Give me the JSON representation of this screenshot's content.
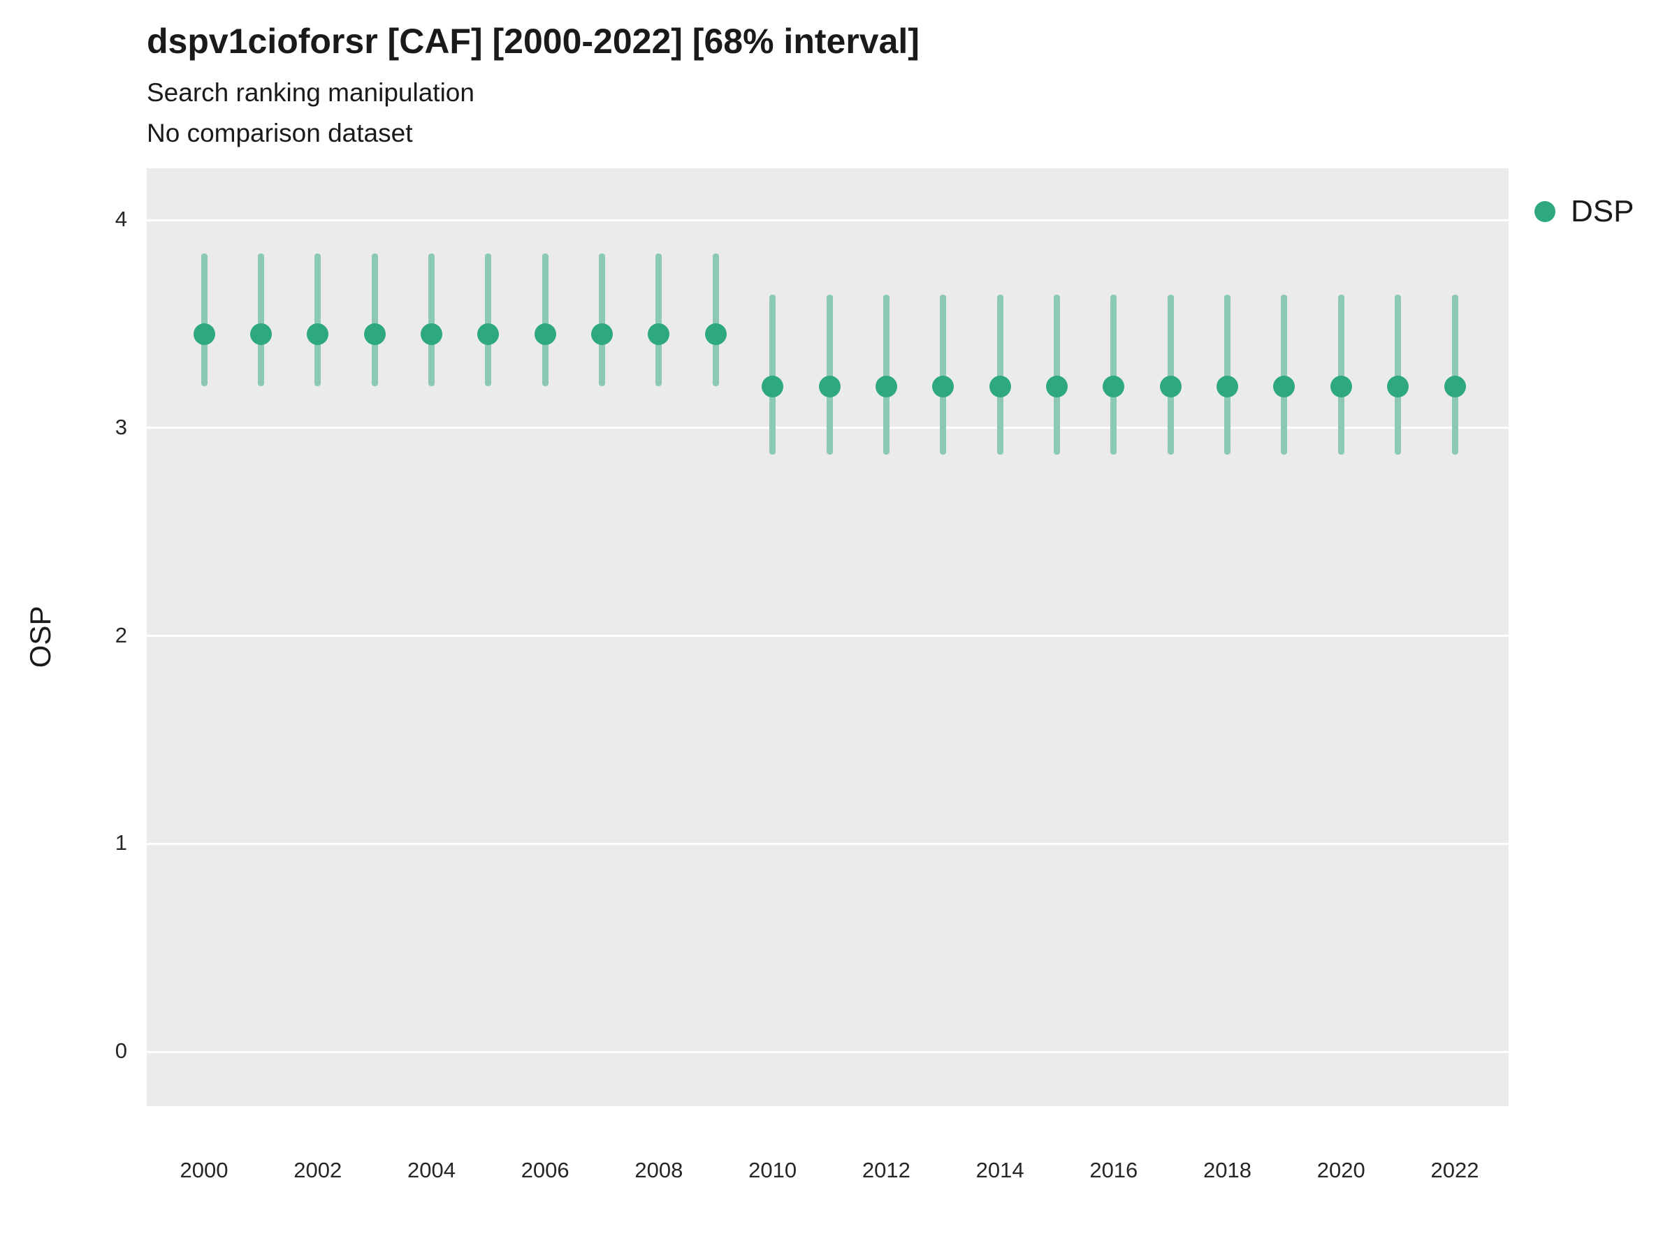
{
  "chart_data": {
    "type": "scatter",
    "title": "dspv1cioforsr [CAF] [2000-2022] [68% interval]",
    "subtitle": "Search ranking manipulation",
    "subtitle2": "No comparison dataset",
    "xlabel": "",
    "ylabel": "OSP",
    "ylim": [
      -0.26,
      4.25
    ],
    "yticks": [
      0,
      1,
      2,
      3,
      4
    ],
    "xticks": [
      2000,
      2002,
      2004,
      2006,
      2008,
      2010,
      2012,
      2014,
      2016,
      2018,
      2020,
      2022
    ],
    "grid": "horizontal-major-only",
    "panel_background": "#EBEBEB",
    "gridline_color": "#ffffff",
    "legend_position": "right",
    "legend": [
      {
        "label": "DSP",
        "color": "#2EA87E"
      }
    ],
    "point_color": "#2EA87E",
    "interval_color": "#8CC9B4",
    "series": [
      {
        "name": "DSP",
        "x": [
          2000,
          2001,
          2002,
          2003,
          2004,
          2005,
          2006,
          2007,
          2008,
          2009,
          2010,
          2011,
          2012,
          2013,
          2014,
          2015,
          2016,
          2017,
          2018,
          2019,
          2020,
          2021,
          2022
        ],
        "y": [
          3.45,
          3.45,
          3.45,
          3.45,
          3.45,
          3.45,
          3.45,
          3.45,
          3.45,
          3.45,
          3.2,
          3.2,
          3.2,
          3.2,
          3.2,
          3.2,
          3.2,
          3.2,
          3.2,
          3.2,
          3.2,
          3.2,
          3.2
        ],
        "ylo": [
          3.2,
          3.2,
          3.2,
          3.2,
          3.2,
          3.2,
          3.2,
          3.2,
          3.2,
          3.2,
          2.87,
          2.87,
          2.87,
          2.87,
          2.87,
          2.87,
          2.87,
          2.87,
          2.87,
          2.87,
          2.87,
          2.87,
          2.87
        ],
        "yhi": [
          3.84,
          3.84,
          3.84,
          3.84,
          3.84,
          3.84,
          3.84,
          3.84,
          3.84,
          3.84,
          3.64,
          3.64,
          3.64,
          3.64,
          3.64,
          3.64,
          3.64,
          3.64,
          3.64,
          3.64,
          3.64,
          3.64,
          3.64
        ]
      }
    ]
  }
}
